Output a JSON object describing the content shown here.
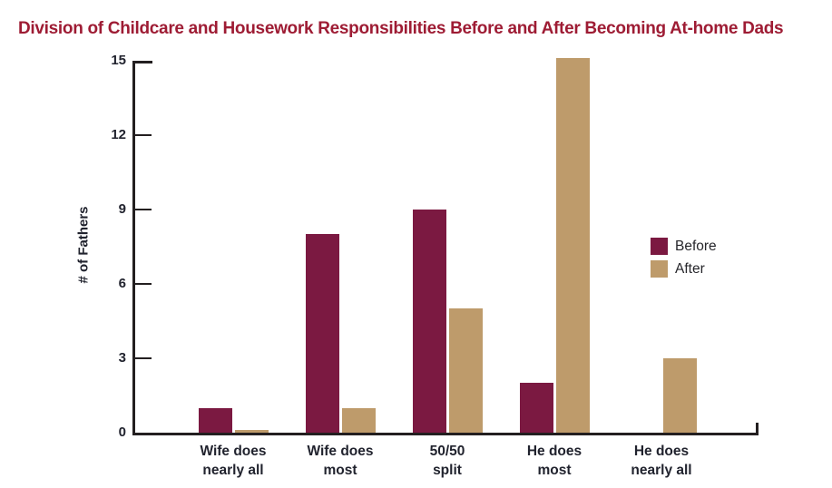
{
  "title": "Division of Childcare and Housework Responsibilities Before and After Becoming At-home Dads",
  "colors": {
    "title_text": "#9E1C34",
    "axis": "#231F20",
    "tick_text": "#21232E",
    "legend_text": "#26262B",
    "before": "#7B1941",
    "after": "#BE9B6B",
    "background": "#FFFFFF"
  },
  "chart_data": {
    "type": "bar",
    "title": "Division of Childcare and Housework Responsibilities Before and After Becoming At-home Dads",
    "xlabel": "",
    "ylabel": "# of Fathers",
    "ylim": [
      0,
      15
    ],
    "yticks": [
      0,
      3,
      6,
      9,
      12,
      15
    ],
    "grid": false,
    "legend_position": "right",
    "categories": [
      "Wife does nearly all",
      "Wife does most",
      "50/50 split",
      "He does most",
      "He does nearly all"
    ],
    "categories_two_line": [
      [
        "Wife does",
        "nearly all"
      ],
      [
        "Wife does",
        "most"
      ],
      [
        "50/50",
        "split"
      ],
      [
        "He does",
        "most"
      ],
      [
        "He does",
        "nearly all"
      ]
    ],
    "series": [
      {
        "name": "Before",
        "color": "#7B1941",
        "values": [
          1,
          8,
          9,
          2,
          0
        ]
      },
      {
        "name": "After",
        "color": "#BE9B6B",
        "values": [
          0.1,
          1,
          5,
          15.1,
          3
        ]
      }
    ]
  }
}
